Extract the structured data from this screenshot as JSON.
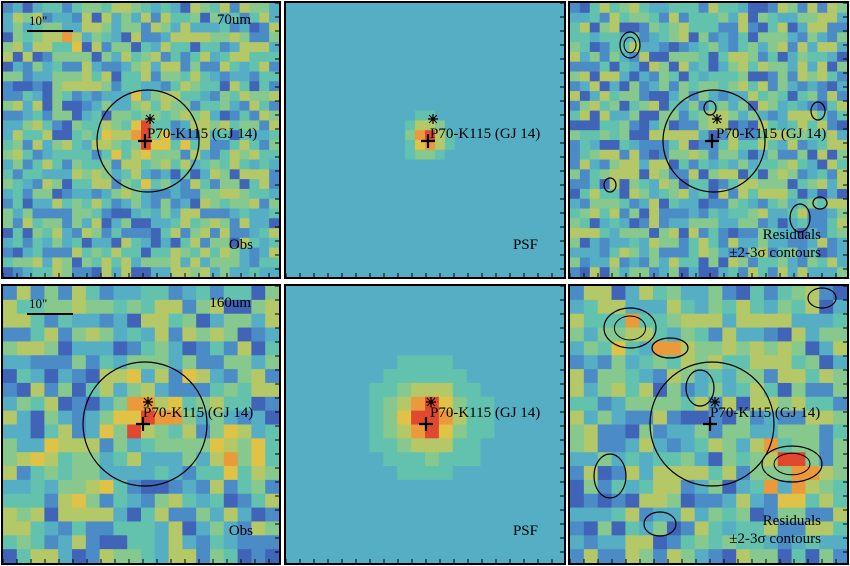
{
  "panels": [
    {
      "id": "p70-obs",
      "band": "70um",
      "kind": "Obs",
      "scale_label": "10\"",
      "source": "P70-K115 (GJ 14)"
    },
    {
      "id": "p70-psf",
      "kind": "PSF",
      "source": "P70-K115 (GJ 14)"
    },
    {
      "id": "p70-res",
      "kind": "Residuals",
      "contour_note": "±2-3σ contours",
      "source": "P70-K115 (GJ 14)"
    },
    {
      "id": "p160-obs",
      "band": "160um",
      "kind": "Obs",
      "scale_label": "10\"",
      "source": "P70-K115 (GJ 14)"
    },
    {
      "id": "p160-psf",
      "kind": "PSF",
      "source": "P70-K115 (GJ 14)"
    },
    {
      "id": "p160-res",
      "kind": "Residuals",
      "contour_note": "±2-3σ contours",
      "source": "P70-K115 (GJ 14)"
    }
  ],
  "colors": {
    "background": "#4f9fc2",
    "low": "#3d4fa8",
    "mid": "#5fc0b0",
    "high": "#e8c24a",
    "peak": "#e03a2f"
  }
}
